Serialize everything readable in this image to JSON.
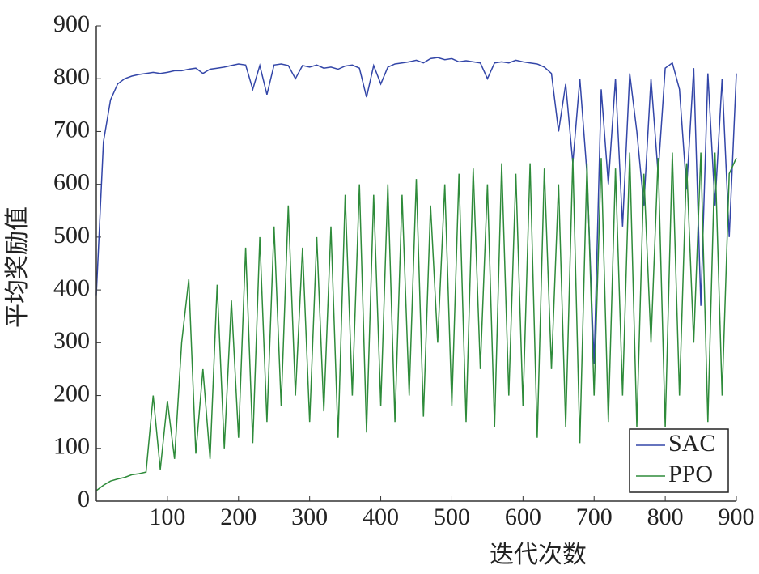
{
  "chart_data": {
    "type": "line",
    "xlabel": "迭代次数",
    "ylabel": "平均奖励值",
    "x": [
      0,
      10,
      20,
      30,
      40,
      50,
      60,
      70,
      80,
      90,
      100,
      110,
      120,
      130,
      140,
      150,
      160,
      170,
      180,
      190,
      200,
      210,
      220,
      230,
      240,
      250,
      260,
      270,
      280,
      290,
      300,
      310,
      320,
      330,
      340,
      350,
      360,
      370,
      380,
      390,
      400,
      410,
      420,
      430,
      440,
      450,
      460,
      470,
      480,
      490,
      500,
      510,
      520,
      530,
      540,
      550,
      560,
      570,
      580,
      590,
      600,
      610,
      620,
      630,
      640,
      650,
      660,
      670,
      680,
      690,
      700,
      710,
      720,
      730,
      740,
      750,
      760,
      770,
      780,
      790,
      800,
      810,
      820,
      830,
      840,
      850,
      860,
      870,
      880,
      890,
      900
    ],
    "series": [
      {
        "name": "SAC",
        "color": "#3346a8",
        "values": [
          390,
          680,
          760,
          790,
          800,
          805,
          808,
          810,
          812,
          810,
          812,
          815,
          815,
          818,
          820,
          810,
          818,
          820,
          822,
          825,
          828,
          826,
          780,
          825,
          770,
          826,
          828,
          825,
          800,
          825,
          822,
          826,
          820,
          822,
          818,
          824,
          826,
          820,
          765,
          825,
          790,
          822,
          828,
          830,
          832,
          835,
          830,
          838,
          840,
          836,
          838,
          832,
          834,
          832,
          830,
          800,
          830,
          832,
          830,
          835,
          832,
          830,
          828,
          822,
          810,
          700,
          790,
          640,
          800,
          620,
          260,
          780,
          600,
          800,
          520,
          810,
          700,
          560,
          800,
          620,
          820,
          830,
          780,
          590,
          820,
          370,
          810,
          560,
          800,
          500,
          810
        ]
      },
      {
        "name": "PPO",
        "color": "#2e8b3a",
        "values": [
          20,
          30,
          38,
          42,
          45,
          50,
          52,
          55,
          200,
          60,
          190,
          80,
          300,
          420,
          90,
          250,
          80,
          410,
          100,
          380,
          120,
          480,
          110,
          500,
          150,
          520,
          180,
          560,
          200,
          480,
          150,
          500,
          170,
          520,
          120,
          580,
          200,
          600,
          130,
          580,
          180,
          600,
          150,
          580,
          200,
          610,
          160,
          560,
          300,
          600,
          180,
          620,
          150,
          630,
          250,
          600,
          140,
          640,
          200,
          620,
          180,
          640,
          120,
          630,
          250,
          600,
          140,
          650,
          110,
          640,
          200,
          650,
          150,
          630,
          200,
          660,
          140,
          620,
          300,
          650,
          140,
          660,
          200,
          640,
          300,
          660,
          150,
          660,
          200,
          620,
          650
        ]
      }
    ],
    "xlim": [
      0,
      900
    ],
    "xticks": [
      100,
      200,
      300,
      400,
      500,
      600,
      700,
      800,
      900
    ],
    "ylim": [
      0,
      900
    ],
    "yticks": [
      0,
      100,
      200,
      300,
      400,
      500,
      600,
      700,
      800,
      900
    ],
    "legend": "lower right"
  }
}
